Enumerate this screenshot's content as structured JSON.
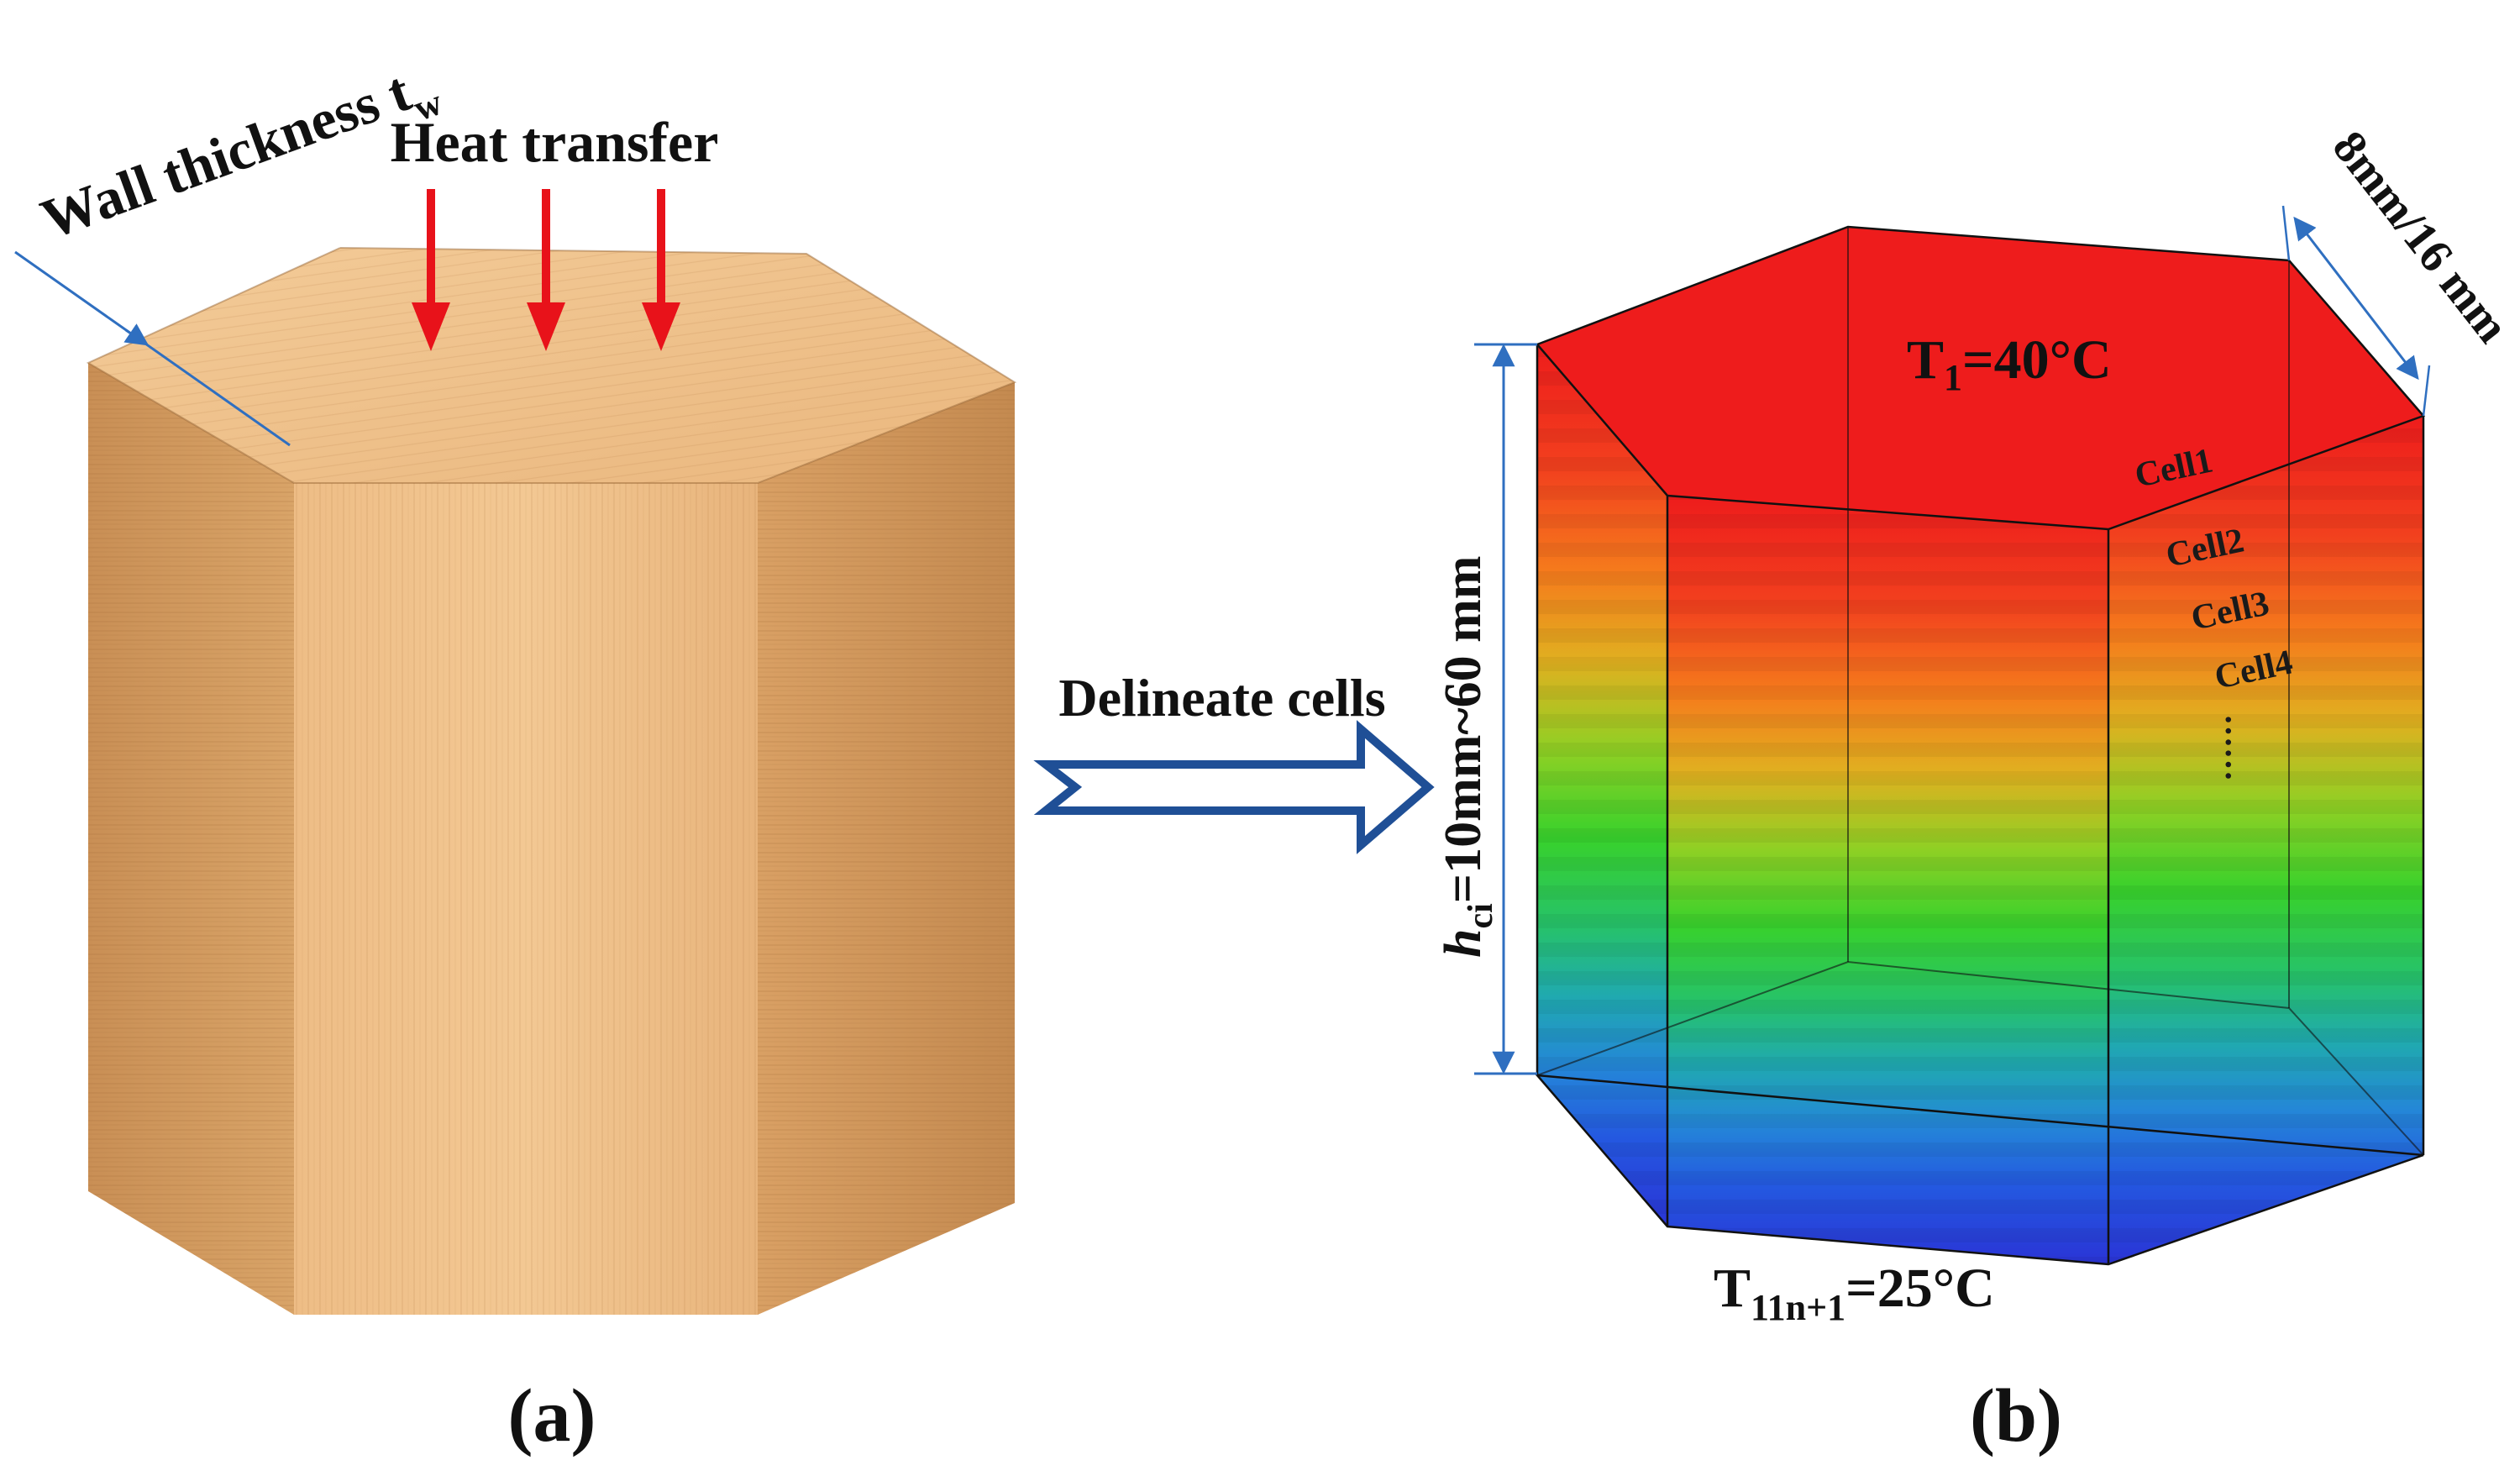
{
  "panel_a": {
    "wall_thickness_label": "Wall thickness t",
    "wall_thickness_subscript": "w",
    "heat_transfer_label": "Heat transfer",
    "caption": "(a)"
  },
  "arrow": {
    "label": "Delineate cells"
  },
  "panel_b": {
    "top_temp_prefix": "T",
    "top_temp_subscript": "1",
    "top_temp_value": "=40°C",
    "bottom_temp_prefix": "T",
    "bottom_temp_subscript": "11n+1",
    "bottom_temp_value": "=25°C",
    "height_symbol": "h",
    "height_subscript": "ci",
    "height_value": "=10mm~60 mm",
    "side_dimension": "8mm/16 mm",
    "cells": [
      "Cell1",
      "Cell2",
      "Cell3",
      "Cell4"
    ],
    "ellipsis": "……",
    "caption": "(b)"
  },
  "colors": {
    "heat_arrow": "#e8121a",
    "dimension_line": "#2f6fc0",
    "hollow_arrow": "#1f4f96",
    "wood_top": "#f1c48e",
    "wood_front": "#efc08a",
    "wood_side": "#d19a5e"
  }
}
